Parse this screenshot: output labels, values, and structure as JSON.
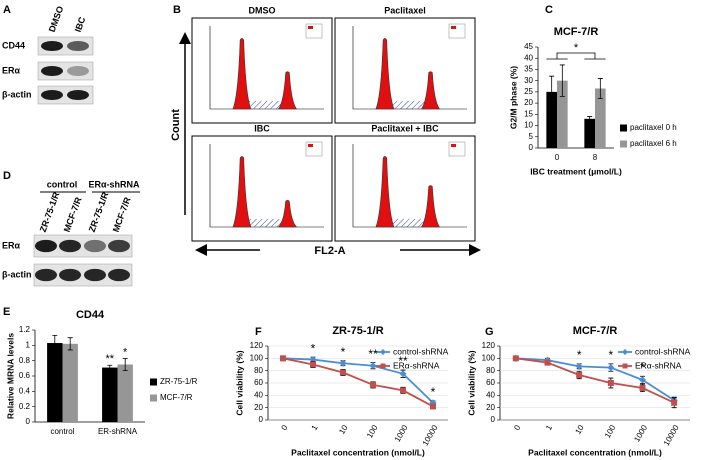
{
  "figure_labels": [
    "A",
    "B",
    "C",
    "D",
    "E",
    "F",
    "G"
  ],
  "blot_a": {
    "lanes": [
      "DMSO",
      "IBC"
    ],
    "rows": [
      "CD44",
      "ERα",
      "β-actin"
    ]
  },
  "flow_b": {
    "panels": [
      "DMSO",
      "Paclitaxel",
      "IBC",
      "Paclitaxel + IBC"
    ],
    "y_label": "Count",
    "x_label": "FL2-A"
  },
  "blot_d": {
    "groups": [
      "control",
      "ERα-shRNA"
    ],
    "lanes": [
      "ZR-75-1/R",
      "MCF-7/R",
      "ZR-75-1/R",
      "MCF-7/R"
    ],
    "rows": [
      "ERα",
      "β-actin"
    ]
  },
  "chart_data": [
    {
      "type": "bar",
      "title": "MCF-7/R",
      "y_label": "G2/M phase (%)",
      "x_label": "IBC treatment (μmol/L)",
      "categories": [
        "0",
        "8"
      ],
      "series": [
        {
          "name": "paclitaxel 0 h",
          "color": "#000000",
          "values": [
            25,
            13
          ],
          "errors": [
            7,
            1
          ]
        },
        {
          "name": "paclitaxel 6 h",
          "color": "#969696",
          "values": [
            30,
            26.5
          ],
          "errors": [
            7,
            4.5
          ]
        }
      ],
      "annotation": "*",
      "ylim": [
        0,
        45
      ],
      "yticks": [
        0,
        5,
        10,
        15,
        20,
        25,
        30,
        35,
        40,
        45
      ],
      "legend": "right"
    },
    {
      "type": "bar",
      "title": "CD44",
      "y_label": "Relative MRNA levels",
      "categories": [
        "control",
        "ER-shRNA"
      ],
      "series": [
        {
          "name": "ZR-75-1/R",
          "color": "#000000",
          "values": [
            1.03,
            0.71
          ],
          "errors": [
            0.1,
            0.03
          ],
          "annotations": [
            null,
            "**"
          ]
        },
        {
          "name": "MCF-7/R",
          "color": "#969696",
          "values": [
            1.02,
            0.75
          ],
          "errors": [
            0.08,
            0.08
          ],
          "annotations": [
            null,
            "*"
          ]
        }
      ],
      "ylim": [
        0,
        1.2
      ],
      "yticks": [
        0,
        0.2,
        0.4,
        0.6,
        0.8,
        1,
        1.2
      ],
      "legend": "right"
    },
    {
      "type": "line",
      "title": "ZR-75-1/R",
      "y_label": "Cell viability (%)",
      "x_label": "Paclitaxel concentration (nmol/L)",
      "categories": [
        "0",
        "1",
        "10",
        "100",
        "1000",
        "10000"
      ],
      "series": [
        {
          "name": "control-shRNA",
          "color": "#4a8fd6",
          "marker": "diamond",
          "values": [
            100,
            98,
            92,
            88,
            75,
            28
          ],
          "errors": [
            0,
            4,
            4,
            5,
            6,
            3
          ]
        },
        {
          "name": "ERα-shRNA",
          "color": "#c0504d",
          "marker": "square",
          "values": [
            100,
            90,
            77,
            57,
            48,
            22
          ],
          "errors": [
            0,
            5,
            5,
            5,
            5,
            3
          ]
        }
      ],
      "annotations": [
        null,
        "*",
        "*",
        "**",
        "**",
        "*"
      ],
      "ylim": [
        0,
        120
      ],
      "yticks": [
        0,
        20,
        40,
        60,
        80,
        100,
        120
      ],
      "legend": "top-right"
    },
    {
      "type": "line",
      "title": "MCF-7/R",
      "y_label": "Cell viability (%)",
      "x_label": "Paclitaxel concentration (nmol/L)",
      "categories": [
        "0",
        "1",
        "10",
        "100",
        "1000",
        "10000"
      ],
      "series": [
        {
          "name": "control-shRNA",
          "color": "#4a8fd6",
          "marker": "diamond",
          "values": [
            100,
            97,
            87,
            85,
            65,
            32
          ],
          "errors": [
            0,
            3,
            4,
            6,
            6,
            5
          ]
        },
        {
          "name": "ERα-shRNA",
          "color": "#c0504d",
          "marker": "square",
          "values": [
            100,
            93,
            73,
            60,
            52,
            28
          ],
          "errors": [
            0,
            3,
            6,
            8,
            6,
            8
          ]
        }
      ],
      "annotations": [
        null,
        null,
        "*",
        "*",
        "*",
        null
      ],
      "ylim": [
        0,
        120
      ],
      "yticks": [
        0,
        20,
        40,
        60,
        80,
        100,
        120
      ],
      "legend": "top-right"
    }
  ]
}
